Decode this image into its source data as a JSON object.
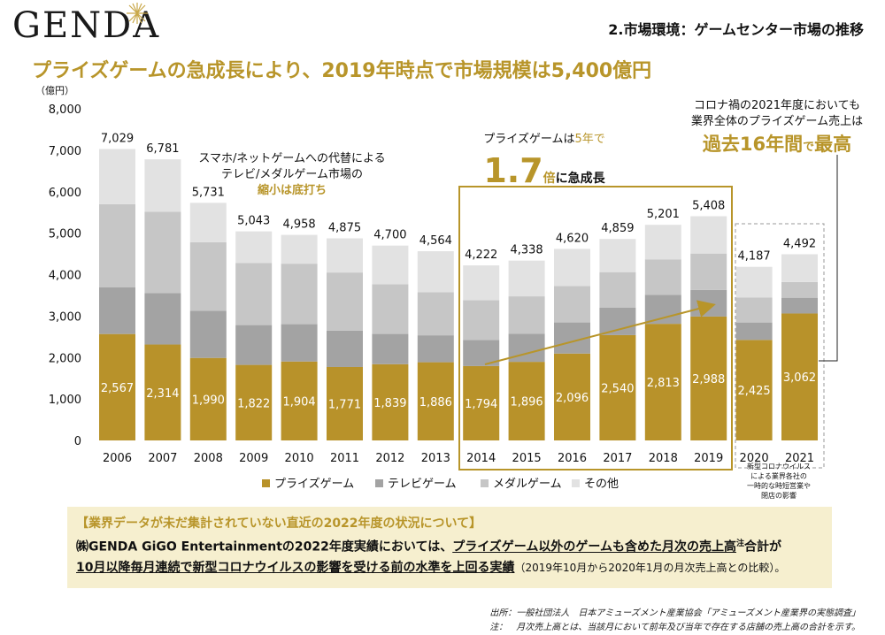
{
  "header": {
    "logo": "GENDA",
    "section_title": "2.市場環境：ゲームセンター市場の推移",
    "headline": "プライズゲームの急成長により、2019年時点で市場規模は5,400億円"
  },
  "chart_data": {
    "type": "bar",
    "stacked": true,
    "ylabel": "（億円）",
    "ylim": [
      0,
      8000
    ],
    "yticks": [
      "0",
      "1,000",
      "2,000",
      "3,000",
      "4,000",
      "5,000",
      "6,000",
      "7,000",
      "8,000"
    ],
    "categories": [
      "2006",
      "2007",
      "2008",
      "2009",
      "2010",
      "2011",
      "2012",
      "2013",
      "2014",
      "2015",
      "2016",
      "2017",
      "2018",
      "2019",
      "2020",
      "2021"
    ],
    "series": [
      {
        "name": "プライズゲーム",
        "color": "#b8922a",
        "values": [
          2567,
          2314,
          1990,
          1822,
          1904,
          1771,
          1839,
          1886,
          1794,
          1896,
          2096,
          2540,
          2813,
          2988,
          2425,
          3062
        ],
        "labels": [
          "2,567",
          "2,314",
          "1,990",
          "1,822",
          "1,904",
          "1,771",
          "1,839",
          "1,886",
          "1,794",
          "1,896",
          "2,096",
          "2,540",
          "2,813",
          "2,988",
          "2,425",
          "3,062"
        ]
      },
      {
        "name": "テレビゲーム",
        "color": "#a3a3a3",
        "values": [
          1130,
          1240,
          1140,
          960,
          900,
          880,
          730,
          650,
          630,
          680,
          750,
          660,
          700,
          640,
          420,
          380
        ]
      },
      {
        "name": "メダルゲーム",
        "color": "#c6c6c6",
        "values": [
          2000,
          1960,
          1650,
          1500,
          1460,
          1400,
          1200,
          1040,
          960,
          900,
          880,
          860,
          850,
          880,
          600,
          380
        ]
      },
      {
        "name": "その他",
        "color": "#e2e2e2",
        "values": [
          1332,
          1267,
          951,
          761,
          694,
          824,
          931,
          988,
          838,
          862,
          894,
          799,
          838,
          900,
          742,
          670
        ]
      }
    ],
    "totals": [
      "7,029",
      "6,781",
      "5,731",
      "5,043",
      "4,958",
      "4,875",
      "4,700",
      "4,564",
      "4,222",
      "4,338",
      "4,620",
      "4,859",
      "5,201",
      "5,408",
      "4,187",
      "4,492"
    ],
    "legend_position": "bottom",
    "grid": false
  },
  "annotations": {
    "decline_line1": "スマホ/ネットゲームへの代替による",
    "decline_line2": "テレビ/メダルゲーム市場の",
    "decline_line3": "縮小は底打ち",
    "growth_pre": "プライズゲームは",
    "growth_years": "5年で",
    "growth_big": "1.7",
    "growth_mid": "倍",
    "growth_post": "に急成長",
    "covid_line1": "コロナ禍の2021年度においても",
    "covid_line2": "業界全体のプライズゲーム売上は",
    "covid_big1": "過去16年間",
    "covid_small": "で",
    "covid_big2": "最高",
    "covid_note1": "新型コロナウイルス",
    "covid_note2": "による業界各社の",
    "covid_note3": "一時的な時短営業や",
    "covid_note4": "閉店の影響"
  },
  "notes": {
    "heading": "【業界データが未だ集計されていない直近の2022年度の状況について】",
    "line1_a": "㈱GENDA GiGO Entertainmentの2022年度実績においては、",
    "line1_b": "プライズゲーム以外のゲームも含めた月次の売上高",
    "line1_sup": "注",
    "line1_c": "合計が",
    "line2_a": "10月以降毎月連続で新型コロナウイルスの影響を受ける前の水準を上回る実績",
    "line2_b": "（2019年10月から2020年1月の月次売上高との比較）。"
  },
  "footer": {
    "source": "出所：一般社団法人　日本アミューズメント産業協会「アミューズメント産業界の実態調査」",
    "note": "注：　月次売上高とは、当該月において前年及び当年で存在する店舗の売上高の合計を示す。"
  }
}
